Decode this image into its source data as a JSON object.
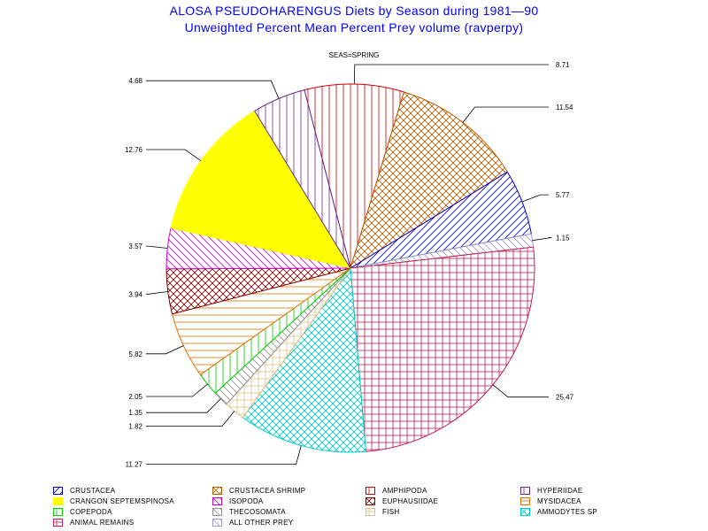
{
  "header": {
    "title": "ALOSA PSEUDOHARENGUS Diets by Season during 1981—90",
    "subtitle": "Unweighted Percent Mean Percent Prey  volume (ravperpy)",
    "panel_label": "SEAS=SPRING"
  },
  "chart_data": {
    "type": "pie",
    "title": "ALOSA PSEUDOHARENGUS Diets by Season during 1981—90",
    "subtitle": "Unweighted Percent Mean Percent Prey  volume (ravperpy)",
    "panel": "SEAS=SPRING",
    "slices": [
      {
        "label": "AMPHIPODA",
        "value": 8.71,
        "value_label": "8.71",
        "color": "#cc0000",
        "pattern": "vertical"
      },
      {
        "label": "CRUSTACEA SHRIMP",
        "value": 11.54,
        "value_label": "11.54",
        "color": "#b85c00",
        "pattern": "crosshatch-diag"
      },
      {
        "label": "CRUSTACEA",
        "value": 5.77,
        "value_label": "5.77",
        "color": "#0000cc",
        "pattern": "diag-right"
      },
      {
        "label": "ALL OTHER PREY",
        "value": 1.15,
        "value_label": "1.15",
        "color": "#9a9ad0",
        "pattern": "diag-left"
      },
      {
        "label": "ANIMAL REMAINS",
        "value": 25.47,
        "value_label": "25.47",
        "color": "#c02050",
        "pattern": "crosshatch"
      },
      {
        "label": "AMMODYTES SP",
        "value": 11.27,
        "value_label": "11.27",
        "color": "#00cccc",
        "pattern": "crosshatch-diag"
      },
      {
        "label": "FISH",
        "value": 1.82,
        "value_label": "1.82",
        "color": "#e0c080",
        "pattern": "crosshatch"
      },
      {
        "label": "THECOSOMATA",
        "value": 1.35,
        "value_label": "1.35",
        "color": "#909090",
        "pattern": "diag-left"
      },
      {
        "label": "COPEPODA",
        "value": 2.05,
        "value_label": "2.05",
        "color": "#00cc00",
        "pattern": "vertical"
      },
      {
        "label": "MYSIDACEA",
        "value": 5.82,
        "value_label": "5.82",
        "color": "#e07000",
        "pattern": "horizontal"
      },
      {
        "label": "EUPHAUSIIDAE",
        "value": 3.94,
        "value_label": "3.94",
        "color": "#800000",
        "pattern": "crosshatch-diag"
      },
      {
        "label": "ISOPODA",
        "value": 3.57,
        "value_label": "3.57",
        "color": "#cc00cc",
        "pattern": "diag-left"
      },
      {
        "label": "CRANGON SEPTEMSPINOSA",
        "value": 12.76,
        "value_label": "12.76",
        "color": "#ffff00",
        "pattern": "solid"
      },
      {
        "label": "HYPERIIDAE",
        "value": 4.68,
        "value_label": "4.68",
        "color": "#6a2a8a",
        "pattern": "vertical"
      }
    ]
  },
  "legend": {
    "rows": [
      [
        {
          "label": "CRUSTACEA",
          "color": "#0000cc",
          "pattern": "diag-right"
        },
        {
          "label": "CRUSTACEA SHRIMP",
          "color": "#b85c00",
          "pattern": "crosshatch-diag"
        },
        {
          "label": "AMPHIPODA",
          "color": "#cc0000",
          "pattern": "vertical"
        },
        {
          "label": "HYPERIIDAE",
          "color": "#6a2a8a",
          "pattern": "vertical"
        }
      ],
      [
        {
          "label": "CRANGON SEPTEMSPINOSA",
          "color": "#ffff00",
          "pattern": "solid"
        },
        {
          "label": "ISOPODA",
          "color": "#cc00cc",
          "pattern": "diag-left"
        },
        {
          "label": "EUPHAUSIIDAE",
          "color": "#800000",
          "pattern": "crosshatch-diag"
        },
        {
          "label": "MYSIDACEA",
          "color": "#e07000",
          "pattern": "horizontal"
        }
      ],
      [
        {
          "label": "COPEPODA",
          "color": "#00cc00",
          "pattern": "vertical"
        },
        {
          "label": "THECOSOMATA",
          "color": "#909090",
          "pattern": "diag-left"
        },
        {
          "label": "FISH",
          "color": "#e0c080",
          "pattern": "crosshatch"
        },
        {
          "label": "AMMODYTES SP",
          "color": "#00cccc",
          "pattern": "crosshatch-diag"
        }
      ],
      [
        {
          "label": "ANIMAL REMAINS",
          "color": "#c02050",
          "pattern": "crosshatch"
        },
        {
          "label": "ALL OTHER PREY",
          "color": "#9a9ad0",
          "pattern": "diag-left"
        }
      ]
    ]
  }
}
